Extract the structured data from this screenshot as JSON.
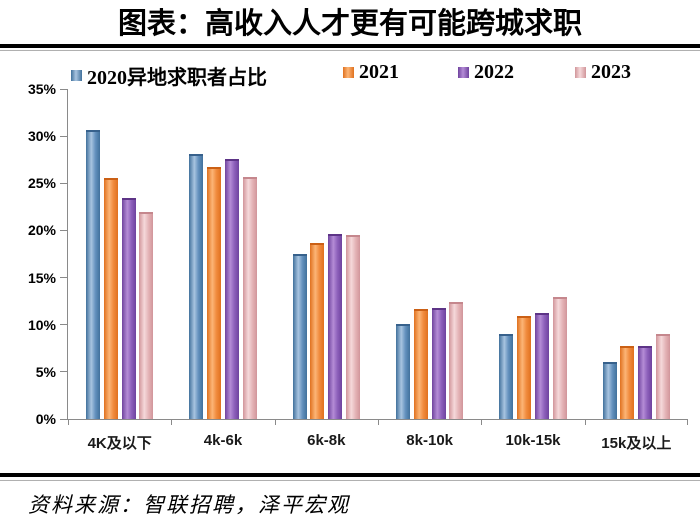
{
  "page": {
    "title": "图表：高收入人才更有可能跨城求职",
    "source": "资料来源：智联招聘，泽平宏观"
  },
  "chart_data": {
    "type": "bar",
    "title": "图表：高收入人才更有可能跨城求职",
    "categories": [
      "4K及以下",
      "4k-6k",
      "6k-8k",
      "8k-10k",
      "10k-15k",
      "15k及以上"
    ],
    "series": [
      {
        "name": "2020异地求职者占比",
        "color": "#6290bd",
        "color_light": "#a8c4e0",
        "color_dark": "#41719c",
        "color_cap": "#37618c",
        "values": [
          30.4,
          27.9,
          17.3,
          9.9,
          8.8,
          5.8
        ]
      },
      {
        "name": "2021",
        "color": "#f08a3c",
        "color_light": "#fcb576",
        "color_dark": "#e0711f",
        "color_cap": "#cb6015",
        "values": [
          25.4,
          26.5,
          18.5,
          11.5,
          10.7,
          7.5
        ]
      },
      {
        "name": "2022",
        "color": "#8c5fba",
        "color_light": "#b48cd6",
        "color_dark": "#6f439e",
        "color_cap": "#5d3487",
        "values": [
          23.2,
          27.4,
          19.4,
          11.6,
          11.0,
          7.5
        ]
      },
      {
        "name": "2023",
        "color": "#e4b4b7",
        "color_light": "#f5d8da",
        "color_dark": "#d1959a",
        "color_cap": "#c5878d",
        "values": [
          21.7,
          25.5,
          19.3,
          12.2,
          12.7,
          8.8
        ]
      }
    ],
    "ylim": [
      0,
      35
    ],
    "ytick_step": 5,
    "ytick_labels": [
      "0%",
      "5%",
      "10%",
      "15%",
      "20%",
      "25%",
      "30%",
      "35%"
    ],
    "xlabel": "",
    "ylabel": "",
    "grid": false,
    "legend_position": "top"
  }
}
